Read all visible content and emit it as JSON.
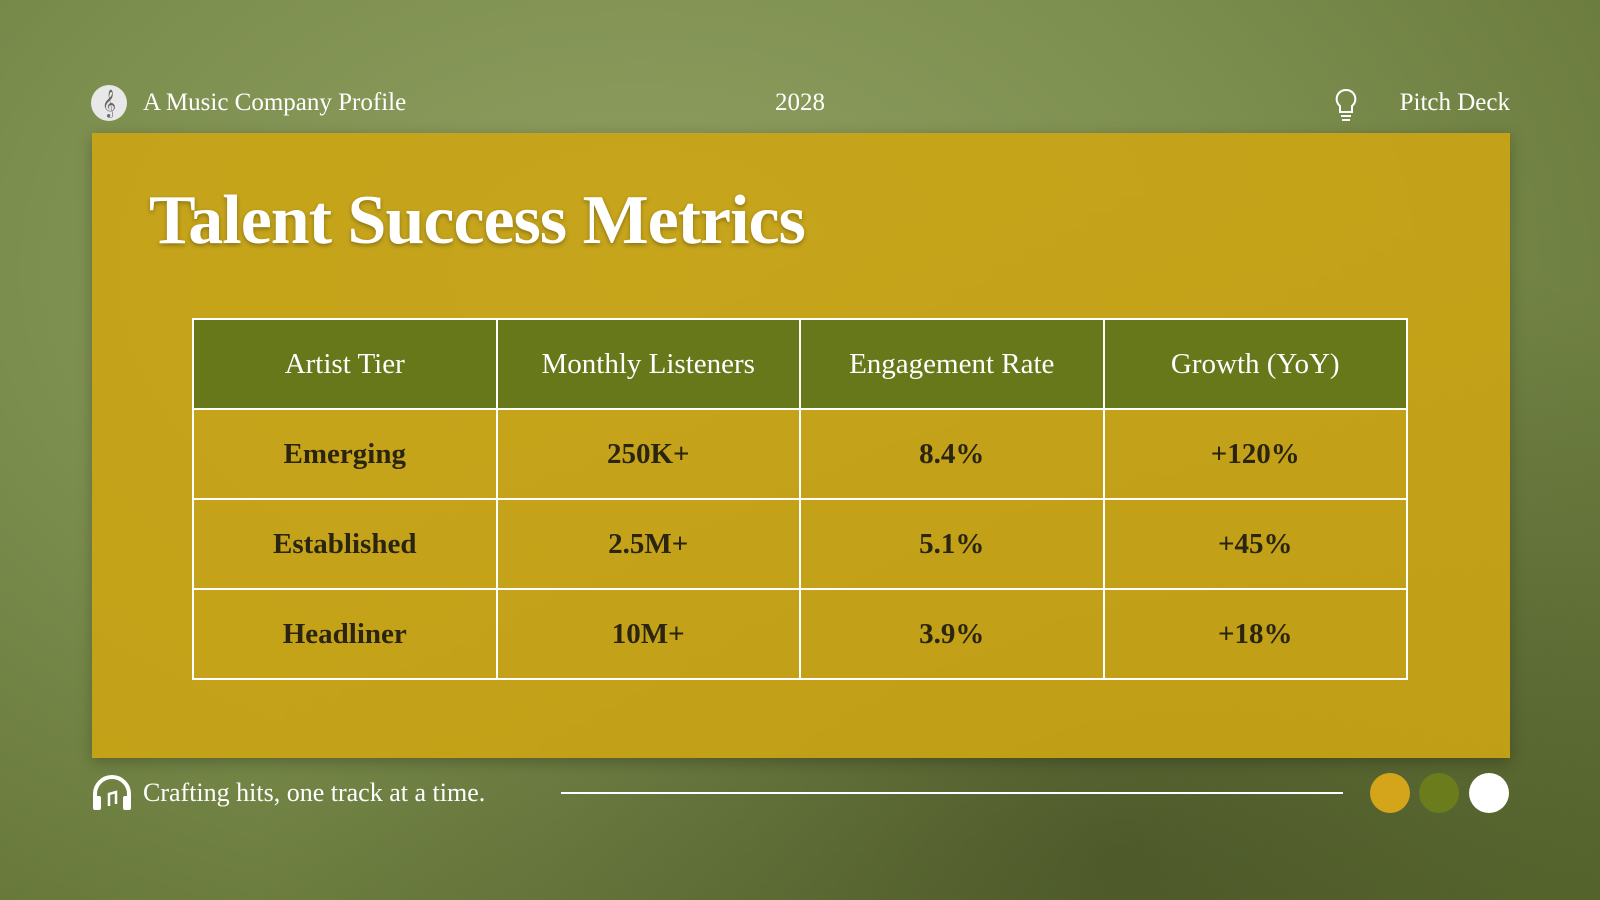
{
  "header": {
    "left": "A Music Company Profile",
    "center": "2028",
    "right": "Pitch Deck"
  },
  "title": "Talent Success Metrics",
  "table": {
    "headers": [
      "Artist Tier",
      "Monthly Listeners",
      "Engagement Rate",
      "Growth (YoY)"
    ],
    "rows": [
      [
        "Emerging",
        "250K+",
        "8.4%",
        "+120%"
      ],
      [
        "Established",
        "2.5M+",
        "5.1%",
        "+45%"
      ],
      [
        "Headliner",
        "10M+",
        "3.9%",
        "+18%"
      ]
    ]
  },
  "footer": {
    "tagline": "Crafting hits, one track at a time."
  }
}
